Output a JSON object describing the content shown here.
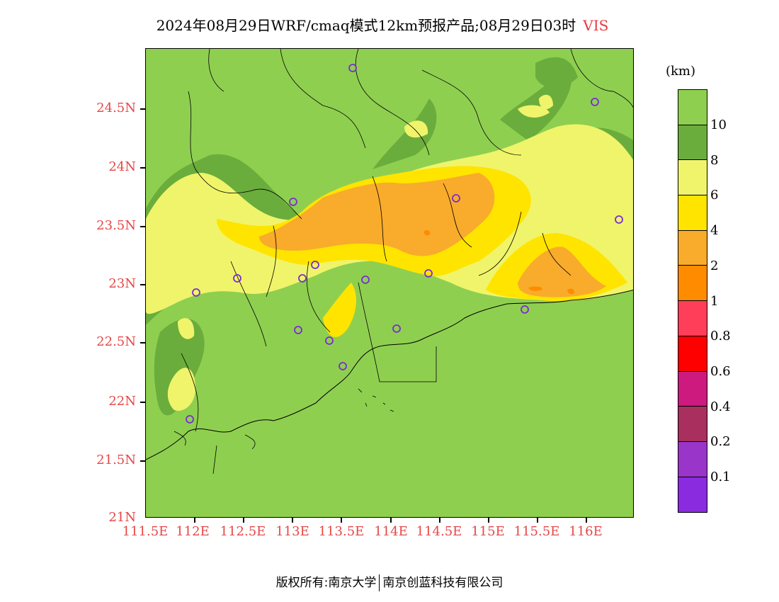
{
  "title": {
    "main": "2024年08月29日WRF/cmaq模式12km预报产品;08月29日03时",
    "variable": "VIS"
  },
  "axes": {
    "lat_labels": [
      "24.5N",
      "24N",
      "23.5N",
      "23N",
      "22.5N",
      "22N",
      "21.5N",
      "21N"
    ],
    "lon_labels": [
      "111.5E",
      "112E",
      "112.5E",
      "113E",
      "113.5E",
      "114E",
      "114.5E",
      "115E",
      "115.5E",
      "116E"
    ]
  },
  "colorbar": {
    "unit": "(km)",
    "colors": [
      "#8fcf50",
      "#6aad3c",
      "#f0f46a",
      "#ffe400",
      "#f9ab2b",
      "#ff8c00",
      "#ff3f5a",
      "#ff0000",
      "#cc1a7f",
      "#a82f5e",
      "#9a35c9",
      "#8b2be0"
    ],
    "labels": [
      "10",
      "8",
      "6",
      "4",
      "2",
      "1",
      "0.8",
      "0.6",
      "0.4",
      "0.2",
      "0.1"
    ]
  },
  "footer": {
    "left": "版权所有:南京大学",
    "right": "南京创蓝科技有限公司"
  }
}
